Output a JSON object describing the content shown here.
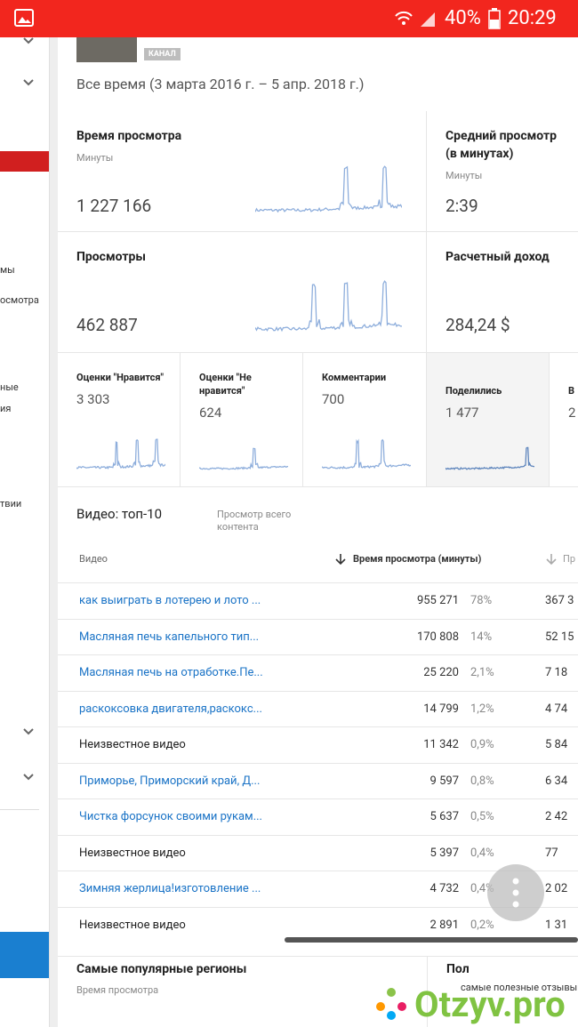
{
  "status_bar": {
    "battery": "40%",
    "time": "20:29"
  },
  "sidebar": {
    "items": [
      "мы",
      "осмотра",
      "ные",
      "ия",
      "твии"
    ]
  },
  "header": {
    "badge": "КАНАЛ",
    "date_range": "Все время (3 марта 2016 г. – 5 апр. 2018 г.)"
  },
  "cards": [
    {
      "title": "Время просмотра",
      "unit": "Минуты",
      "value": "1 227 166"
    },
    {
      "title": "Средний просмотр (в минутах)",
      "unit": "Минуты",
      "value": "2:39"
    },
    {
      "title": "Просмотры",
      "value": "462 887"
    },
    {
      "title": "Расчетный доход",
      "value": "284,24 $"
    }
  ],
  "small_cards": [
    {
      "title": "Оценки \"Нравится\"",
      "value": "3 303"
    },
    {
      "title": "Оценки \"Не нравится\"",
      "value": "624"
    },
    {
      "title": "Комментарии",
      "value": "700"
    },
    {
      "title": "Поделились",
      "value": "1 477"
    },
    {
      "title": "В",
      "value": "2"
    }
  ],
  "top_videos": {
    "title": "Видео: топ-10",
    "subtitle": "Просмотр всего контента",
    "columns": [
      "Видео",
      "Время просмотра (минуты)",
      "Пр"
    ],
    "rows": [
      {
        "title": "как выиграть в лотерею и лото ...",
        "minutes": "955 271",
        "share": "78%",
        "views": "367 3",
        "link": true
      },
      {
        "title": "Масляная печь капельного тип...",
        "minutes": "170 808",
        "share": "14%",
        "views": "52 15",
        "link": true
      },
      {
        "title": "Масляная печь на отработке.Пе...",
        "minutes": "25 220",
        "share": "2,1%",
        "views": "7 18",
        "link": true
      },
      {
        "title": "раскоксовка двигателя,раскокс...",
        "minutes": "14 799",
        "share": "1,2%",
        "views": "4 74",
        "link": true
      },
      {
        "title": "Неизвестное видео",
        "minutes": "11 342",
        "share": "0,9%",
        "views": "5 84",
        "link": false
      },
      {
        "title": "Приморье, Приморский край, Д...",
        "minutes": "9 597",
        "share": "0,8%",
        "views": "6 34",
        "link": true
      },
      {
        "title": "Чистка форсунок своими рукам...",
        "minutes": "5 637",
        "share": "0,5%",
        "views": "2 42",
        "link": true
      },
      {
        "title": "Неизвестное видео",
        "minutes": "5 397",
        "share": "0,4%",
        "views": "77",
        "link": false
      },
      {
        "title": "Зимняя жерлица!изготовление ...",
        "minutes": "4 732",
        "share": "0,4%",
        "views": "2 02",
        "link": true
      },
      {
        "title": "Неизвестное видео",
        "minutes": "2 891",
        "share": "0,2%",
        "views": "1 31",
        "link": false
      }
    ]
  },
  "regions": {
    "title": "Самые популярные регионы",
    "subtitle": "Время просмотра"
  },
  "gender": {
    "title": "Пол"
  },
  "watermark": {
    "tagline": "самые полезные отзывы",
    "brand": "Otzyv.pro"
  }
}
